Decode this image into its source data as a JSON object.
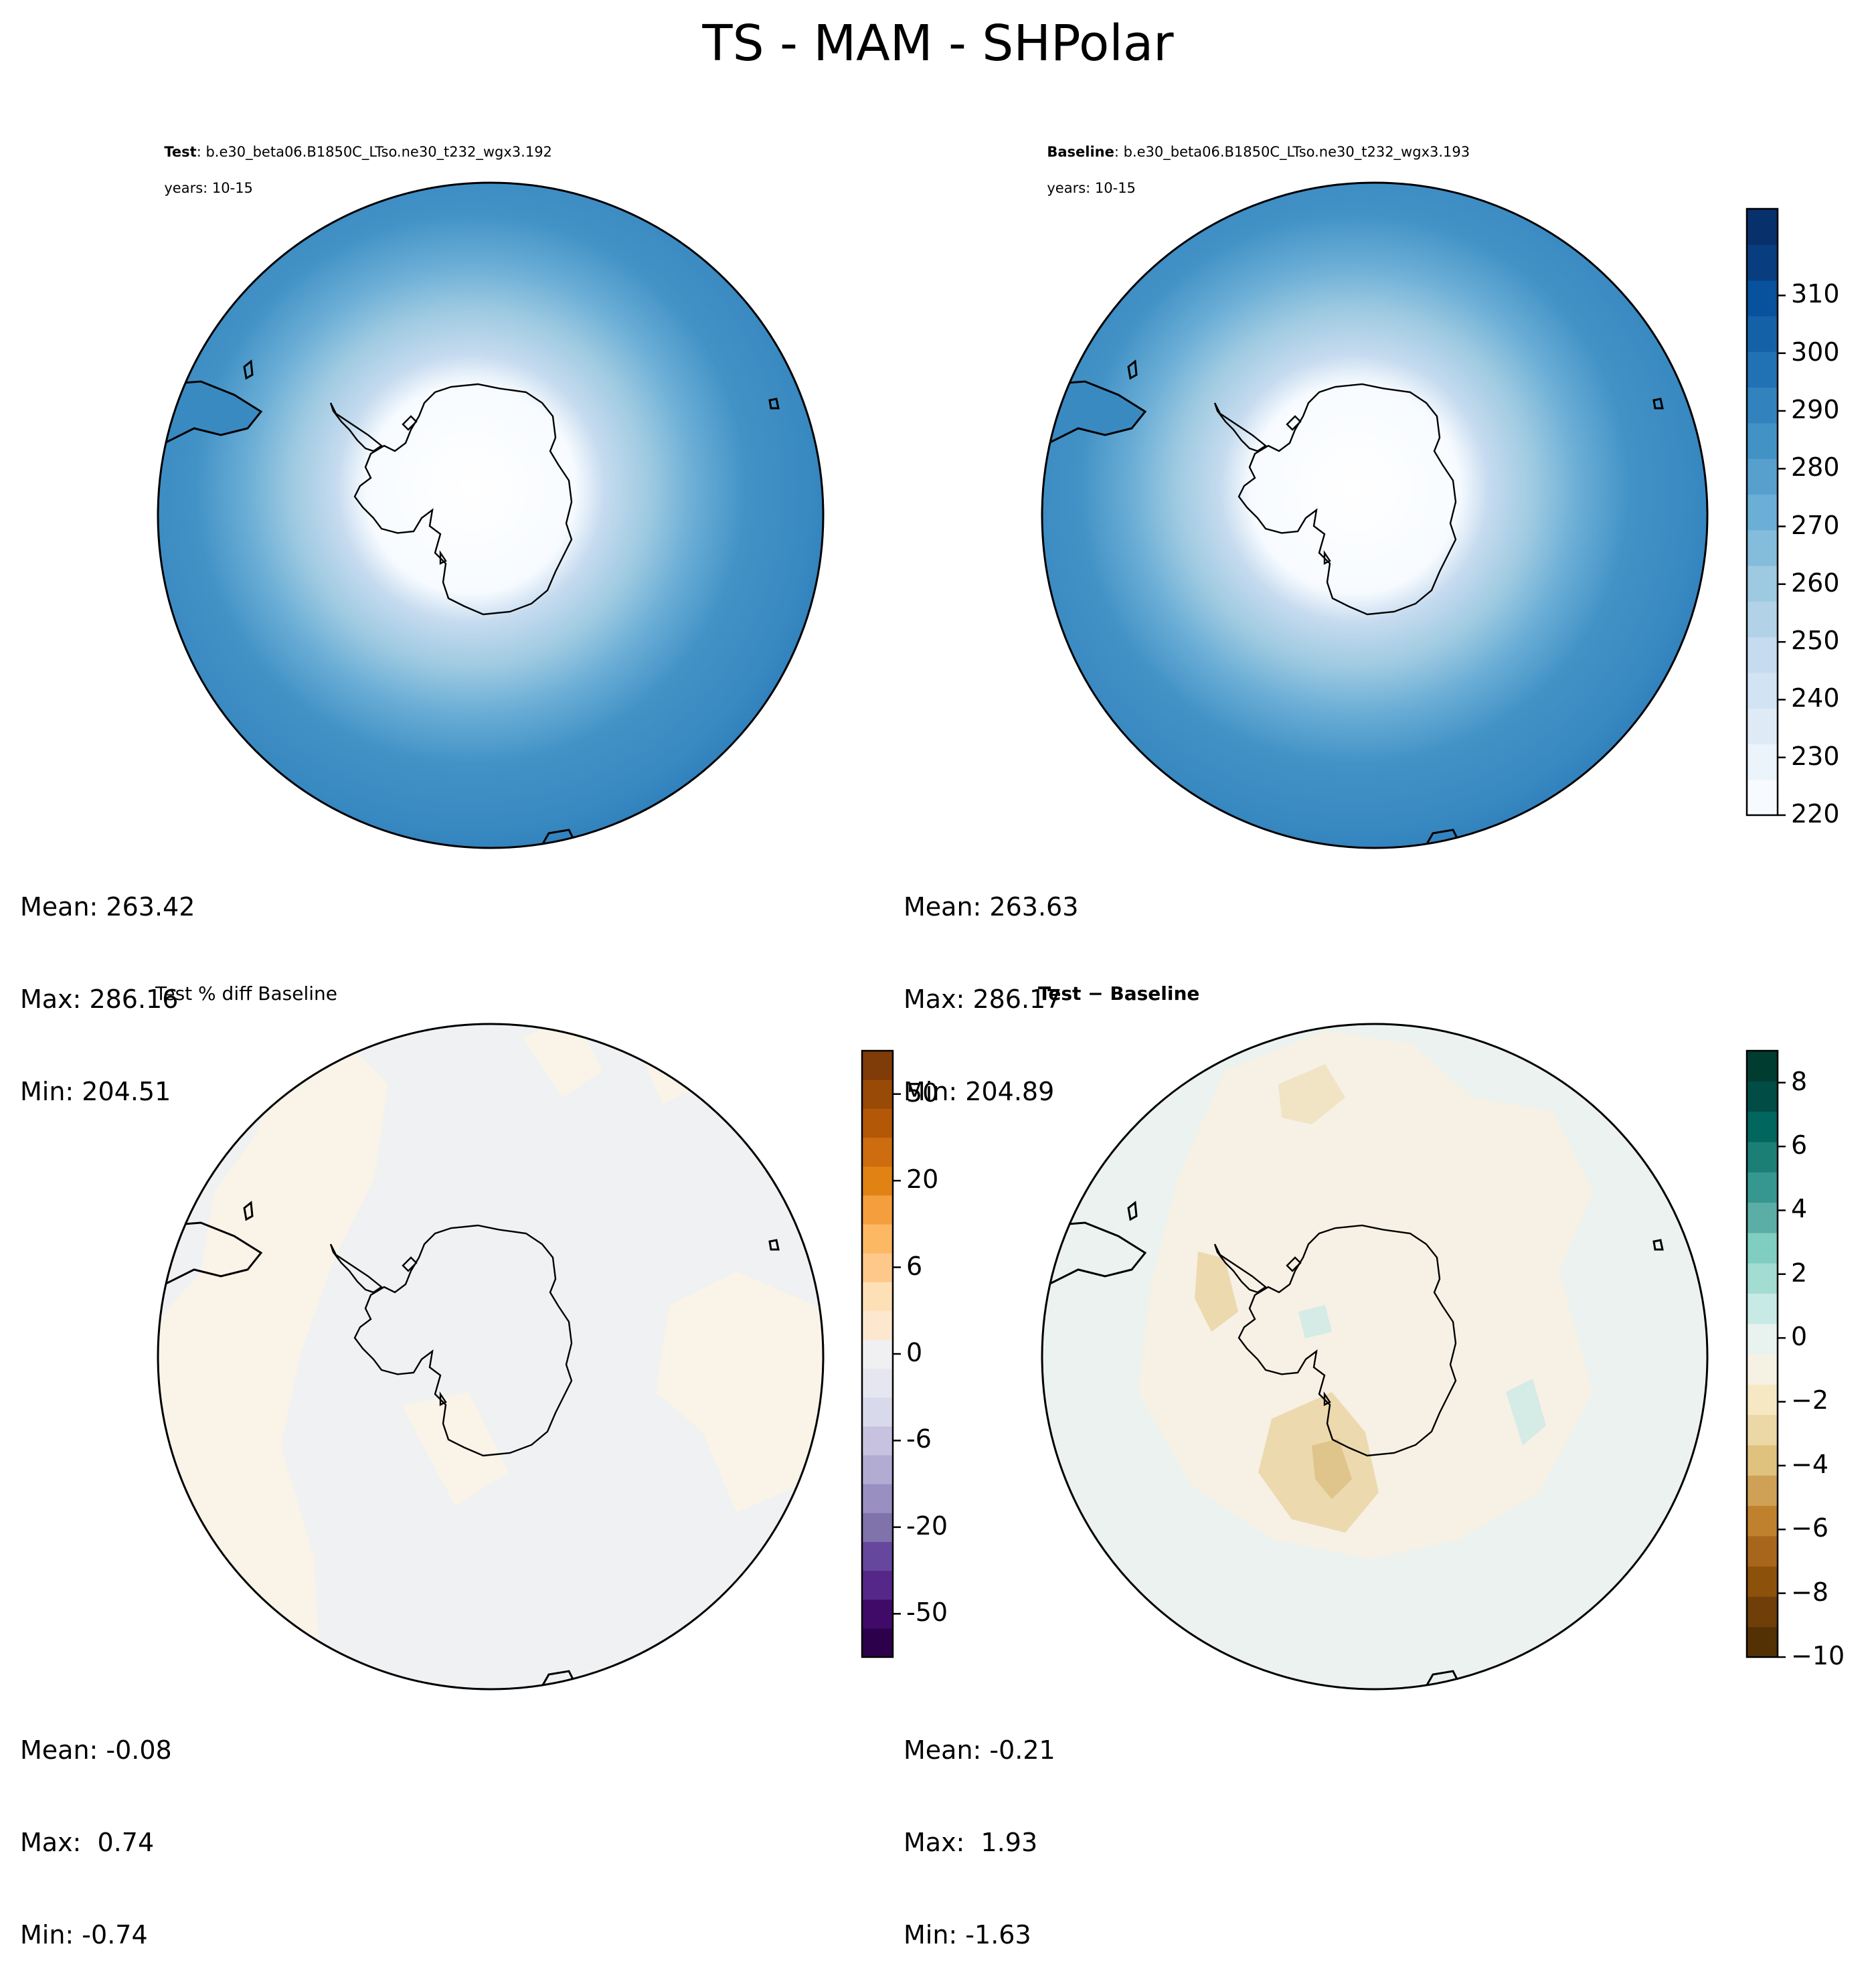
{
  "figure_title": "TS - MAM - SHPolar",
  "panels": {
    "test": {
      "label": "Test",
      "case": ": b.e30_beta06.B1850C_LTso.ne30_t232_wgx3.192",
      "years": "years: 10-15",
      "stats": {
        "mean": "Mean: 263.42",
        "max": "Max: 286.16",
        "min": "Min: 204.51"
      }
    },
    "baseline": {
      "label": "Baseline",
      "case": ": b.e30_beta06.B1850C_LTso.ne30_t232_wgx3.193",
      "years": "years: 10-15",
      "stats": {
        "mean": "Mean: 263.63",
        "max": "Max: 286.17",
        "min": "Min: 204.89"
      }
    },
    "pct_diff": {
      "title": "Test % diff Baseline",
      "stats": {
        "mean": "Mean: -0.08",
        "max": "Max:  0.74",
        "min": "Min: -0.74"
      }
    },
    "diff": {
      "title": "Test − Baseline",
      "stats": {
        "mean": "Mean: -0.21",
        "max": "Max:  1.93",
        "min": "Min: -1.63"
      }
    }
  },
  "colorbars": {
    "ts": {
      "ticks": [
        "220",
        "230",
        "240",
        "250",
        "260",
        "270",
        "280",
        "290",
        "300",
        "310"
      ],
      "colors": [
        "#f7fbff",
        "#ebf3fb",
        "#deebf7",
        "#d2e3f3",
        "#c6dbef",
        "#b2d2e8",
        "#9ecae1",
        "#84bcdb",
        "#6baed6",
        "#57a0ce",
        "#4292c6",
        "#3282be",
        "#2171b5",
        "#1461a8",
        "#08519c",
        "#083d7f",
        "#08306b"
      ]
    },
    "pct": {
      "ticks": [
        "-50",
        "-20",
        "-6",
        "0",
        "6",
        "20",
        "50"
      ],
      "colors": [
        "#2d004b",
        "#3f0a68",
        "#542788",
        "#66479e",
        "#8073ac",
        "#998fc0",
        "#b2abd2",
        "#c6c2df",
        "#d8daeb",
        "#e6e6f0",
        "#f0f0f2",
        "#fde8cf",
        "#fee0b6",
        "#fdc88a",
        "#fdb863",
        "#f59e3d",
        "#e08214",
        "#cd6d0f",
        "#b35806",
        "#9a4a07",
        "#7f3b08"
      ]
    },
    "diff": {
      "ticks": [
        "−10",
        "−8",
        "−6",
        "−4",
        "−2",
        "0",
        "2",
        "4",
        "6",
        "8"
      ],
      "colors": [
        "#543005",
        "#6f3e09",
        "#8c510a",
        "#a8661c",
        "#bf812d",
        "#cfa156",
        "#dfc27d",
        "#ecd8a6",
        "#f6e8c3",
        "#f5f2e4",
        "#e8f2ef",
        "#c7eae5",
        "#a3dcd3",
        "#80cdc1",
        "#5aaea5",
        "#35978f",
        "#1b7f76",
        "#01665e",
        "#014c45",
        "#003c30"
      ]
    }
  }
}
